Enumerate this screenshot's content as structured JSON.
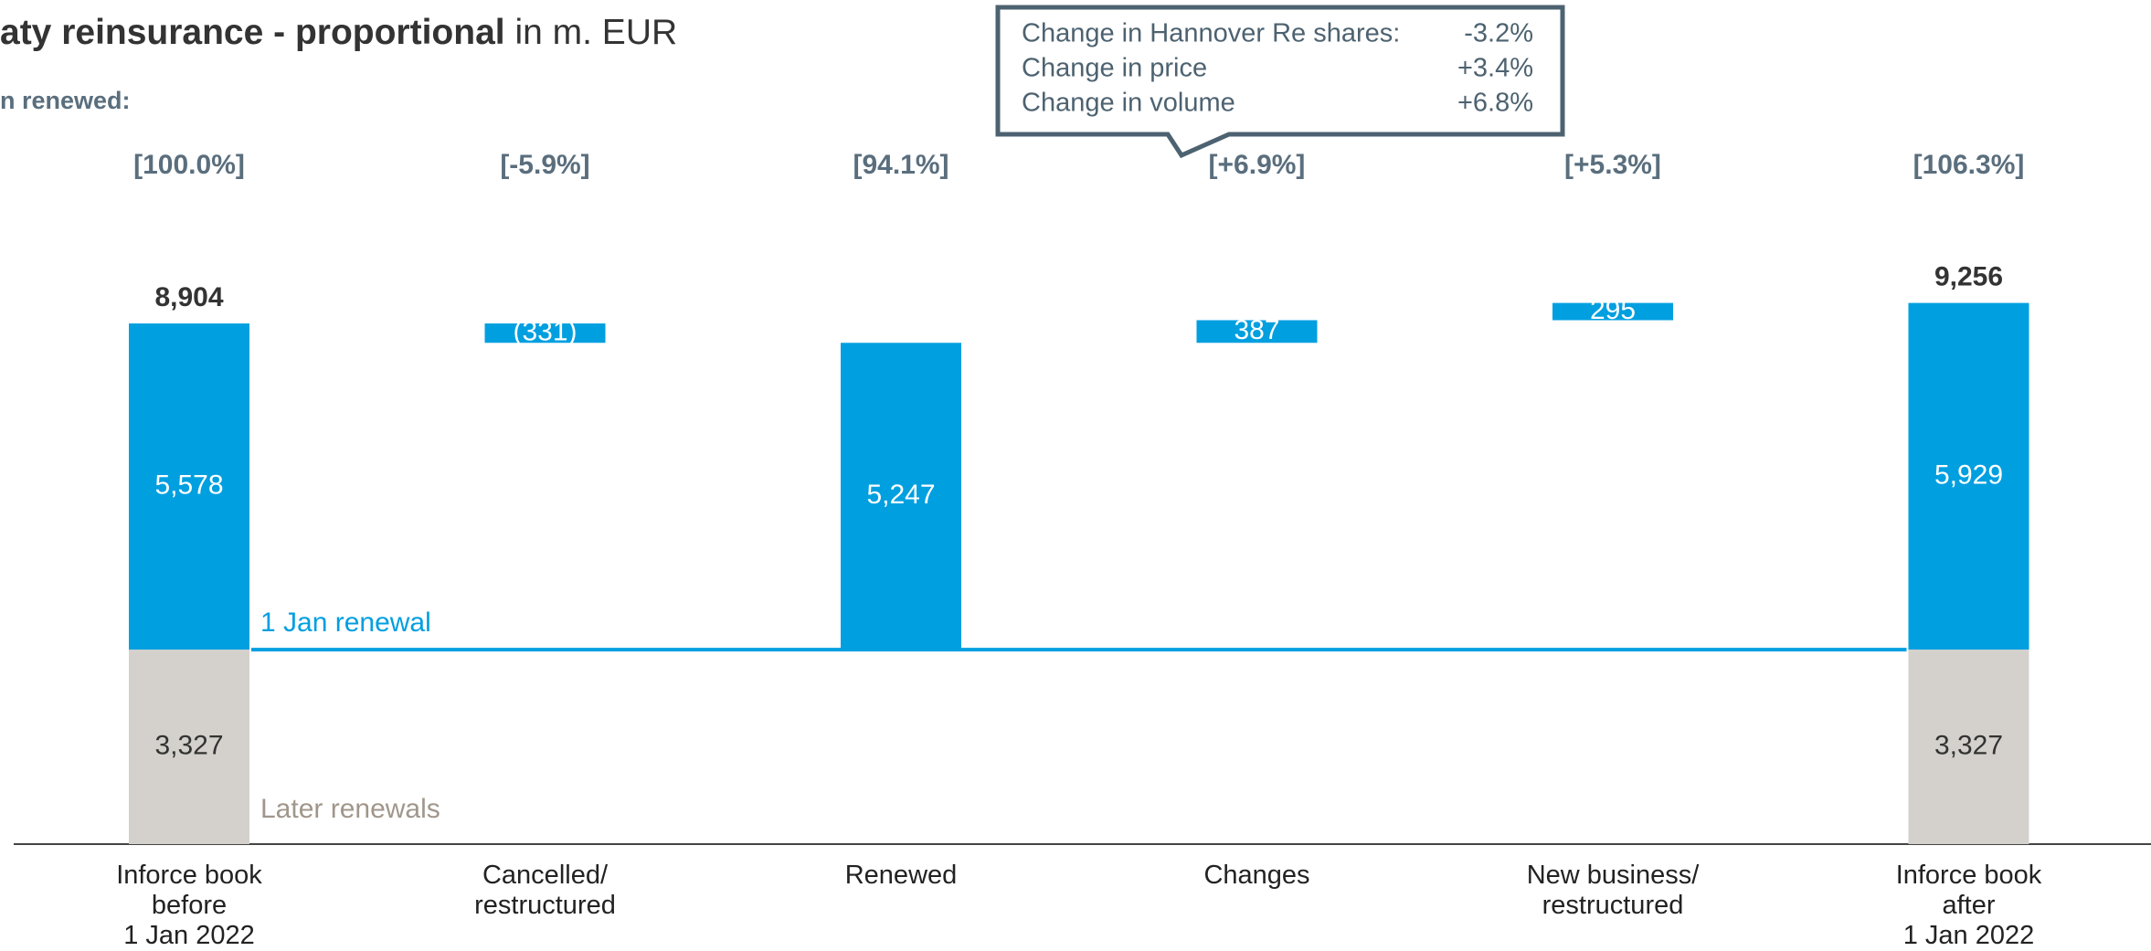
{
  "chart_data": {
    "type": "waterfall",
    "title": "aty reinsurance - proportional",
    "title_unit": "in m. EUR",
    "subtitle": "n renewed:",
    "categories": [
      "Inforce book\nbefore\n1 Jan 2022",
      "Cancelled/\nrestructured",
      "Renewed",
      "Changes",
      "New business/\nrestructured",
      "Inforce book\nafter\n1 Jan 2022"
    ],
    "series": [
      {
        "name": "Later renewals",
        "color": "#d4d1cc",
        "text_color": "#a0968b",
        "values": [
          3327,
          null,
          null,
          null,
          null,
          3327
        ],
        "value_labels": [
          "3,327",
          null,
          null,
          null,
          null,
          "3,327"
        ]
      },
      {
        "name": "1 Jan renewal",
        "color": "#009fe0",
        "text_color": "#009fe0",
        "values": [
          5578,
          -331,
          5247,
          387,
          295,
          5929
        ],
        "value_labels": [
          "5,578",
          "(331)",
          "5,247",
          "387",
          "295",
          "5,929"
        ]
      }
    ],
    "totals": [
      8904,
      null,
      null,
      null,
      null,
      9256
    ],
    "total_labels": [
      "8,904",
      null,
      null,
      null,
      null,
      "9,256"
    ],
    "percentages": [
      100.0,
      -5.9,
      94.1,
      6.9,
      5.3,
      106.3
    ],
    "percentage_labels": [
      "[100.0%]",
      "[-5.9%]",
      "[94.1%]",
      "[+6.9%]",
      "[+5.3%]",
      "[106.3%]"
    ],
    "callout": [
      {
        "label": "Change in Hannover Re shares:",
        "value": "-3.2%"
      },
      {
        "label": "Change in price",
        "value": "+3.4%"
      },
      {
        "label": "Change in volume",
        "value": "+6.8%"
      }
    ]
  }
}
